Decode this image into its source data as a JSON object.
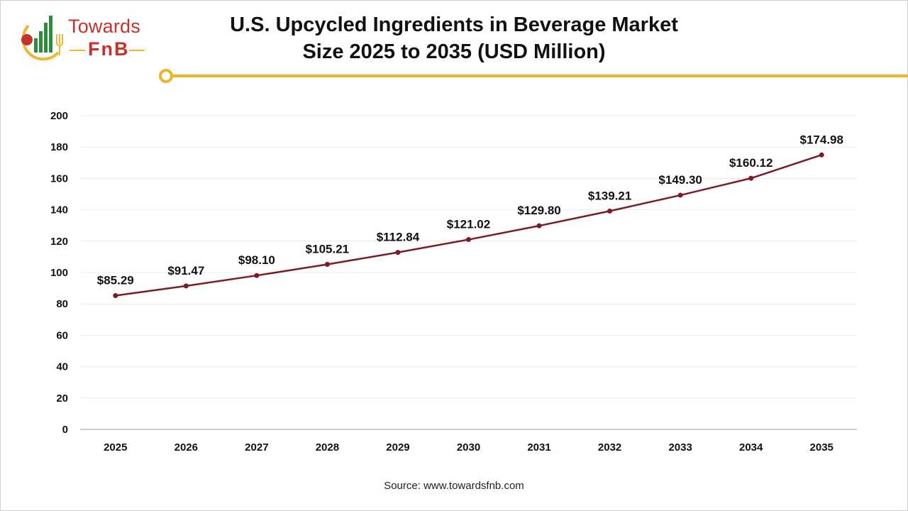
{
  "logo": {
    "word1": "Towards",
    "word2": "FnB",
    "colors": {
      "red": "#c8312b",
      "green": "#2e8b3c",
      "yellow": "#f2b632"
    }
  },
  "title": {
    "line1": "U.S. Upcycled Ingredients in Beverage Market",
    "line2": "Size 2025 to 2035 (USD Million)"
  },
  "accent_color": "#f0b429",
  "source": "Source: www.towardsfnb.com",
  "chart_data": {
    "type": "line",
    "x": [
      "2025",
      "2026",
      "2027",
      "2028",
      "2029",
      "2030",
      "2031",
      "2032",
      "2033",
      "2034",
      "2035"
    ],
    "series": [
      {
        "values": [
          85.29,
          91.47,
          98.1,
          105.21,
          112.84,
          121.02,
          129.8,
          139.21,
          149.3,
          160.12,
          174.98
        ],
        "labels": [
          "$85.29",
          "$91.47",
          "$98.10",
          "$105.21",
          "$112.84",
          "$121.02",
          "$129.80",
          "$139.21",
          "$149.30",
          "$160.12",
          "$174.98"
        ],
        "color": "#7b1c24"
      }
    ],
    "yticks": [
      "0",
      "20",
      "40",
      "60",
      "80",
      "100",
      "120",
      "140",
      "160",
      "180",
      "200"
    ],
    "ylim": [
      0,
      200
    ],
    "grid": true,
    "legend": "none"
  }
}
